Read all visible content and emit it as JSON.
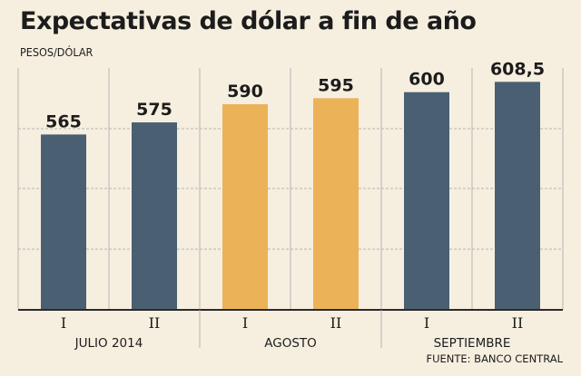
{
  "title": "Expectativas de dólar a fin de año",
  "subtitle": "PESOS/DÓLAR",
  "source": "FUENTE: BANCO CENTRAL",
  "colors": {
    "background": "#f6efdf",
    "bar_dark": "#4a5f72",
    "bar_highlight": "#ebb257",
    "grid": "#b5b5b5",
    "axis": "#2a2a2a"
  },
  "chart_data": {
    "type": "bar",
    "title": "Expectativas de dólar a fin de año",
    "ylabel": "PESOS/DÓLAR",
    "categories": [
      "I",
      "II",
      "I",
      "II",
      "I",
      "II"
    ],
    "groups": [
      {
        "label": "JULIO 2014",
        "categories": [
          "I",
          "II"
        ]
      },
      {
        "label": "AGOSTO",
        "categories": [
          "I",
          "II"
        ]
      },
      {
        "label": "SEPTIEMBRE",
        "categories": [
          "I",
          "II"
        ]
      }
    ],
    "values": [
      565,
      575,
      590,
      595,
      600,
      608.5
    ],
    "value_labels": [
      "565",
      "575",
      "590",
      "595",
      "600",
      "608,5"
    ],
    "highlighted": [
      false,
      false,
      true,
      true,
      false,
      false
    ],
    "ylim": [
      420,
      620
    ],
    "grid": true
  }
}
